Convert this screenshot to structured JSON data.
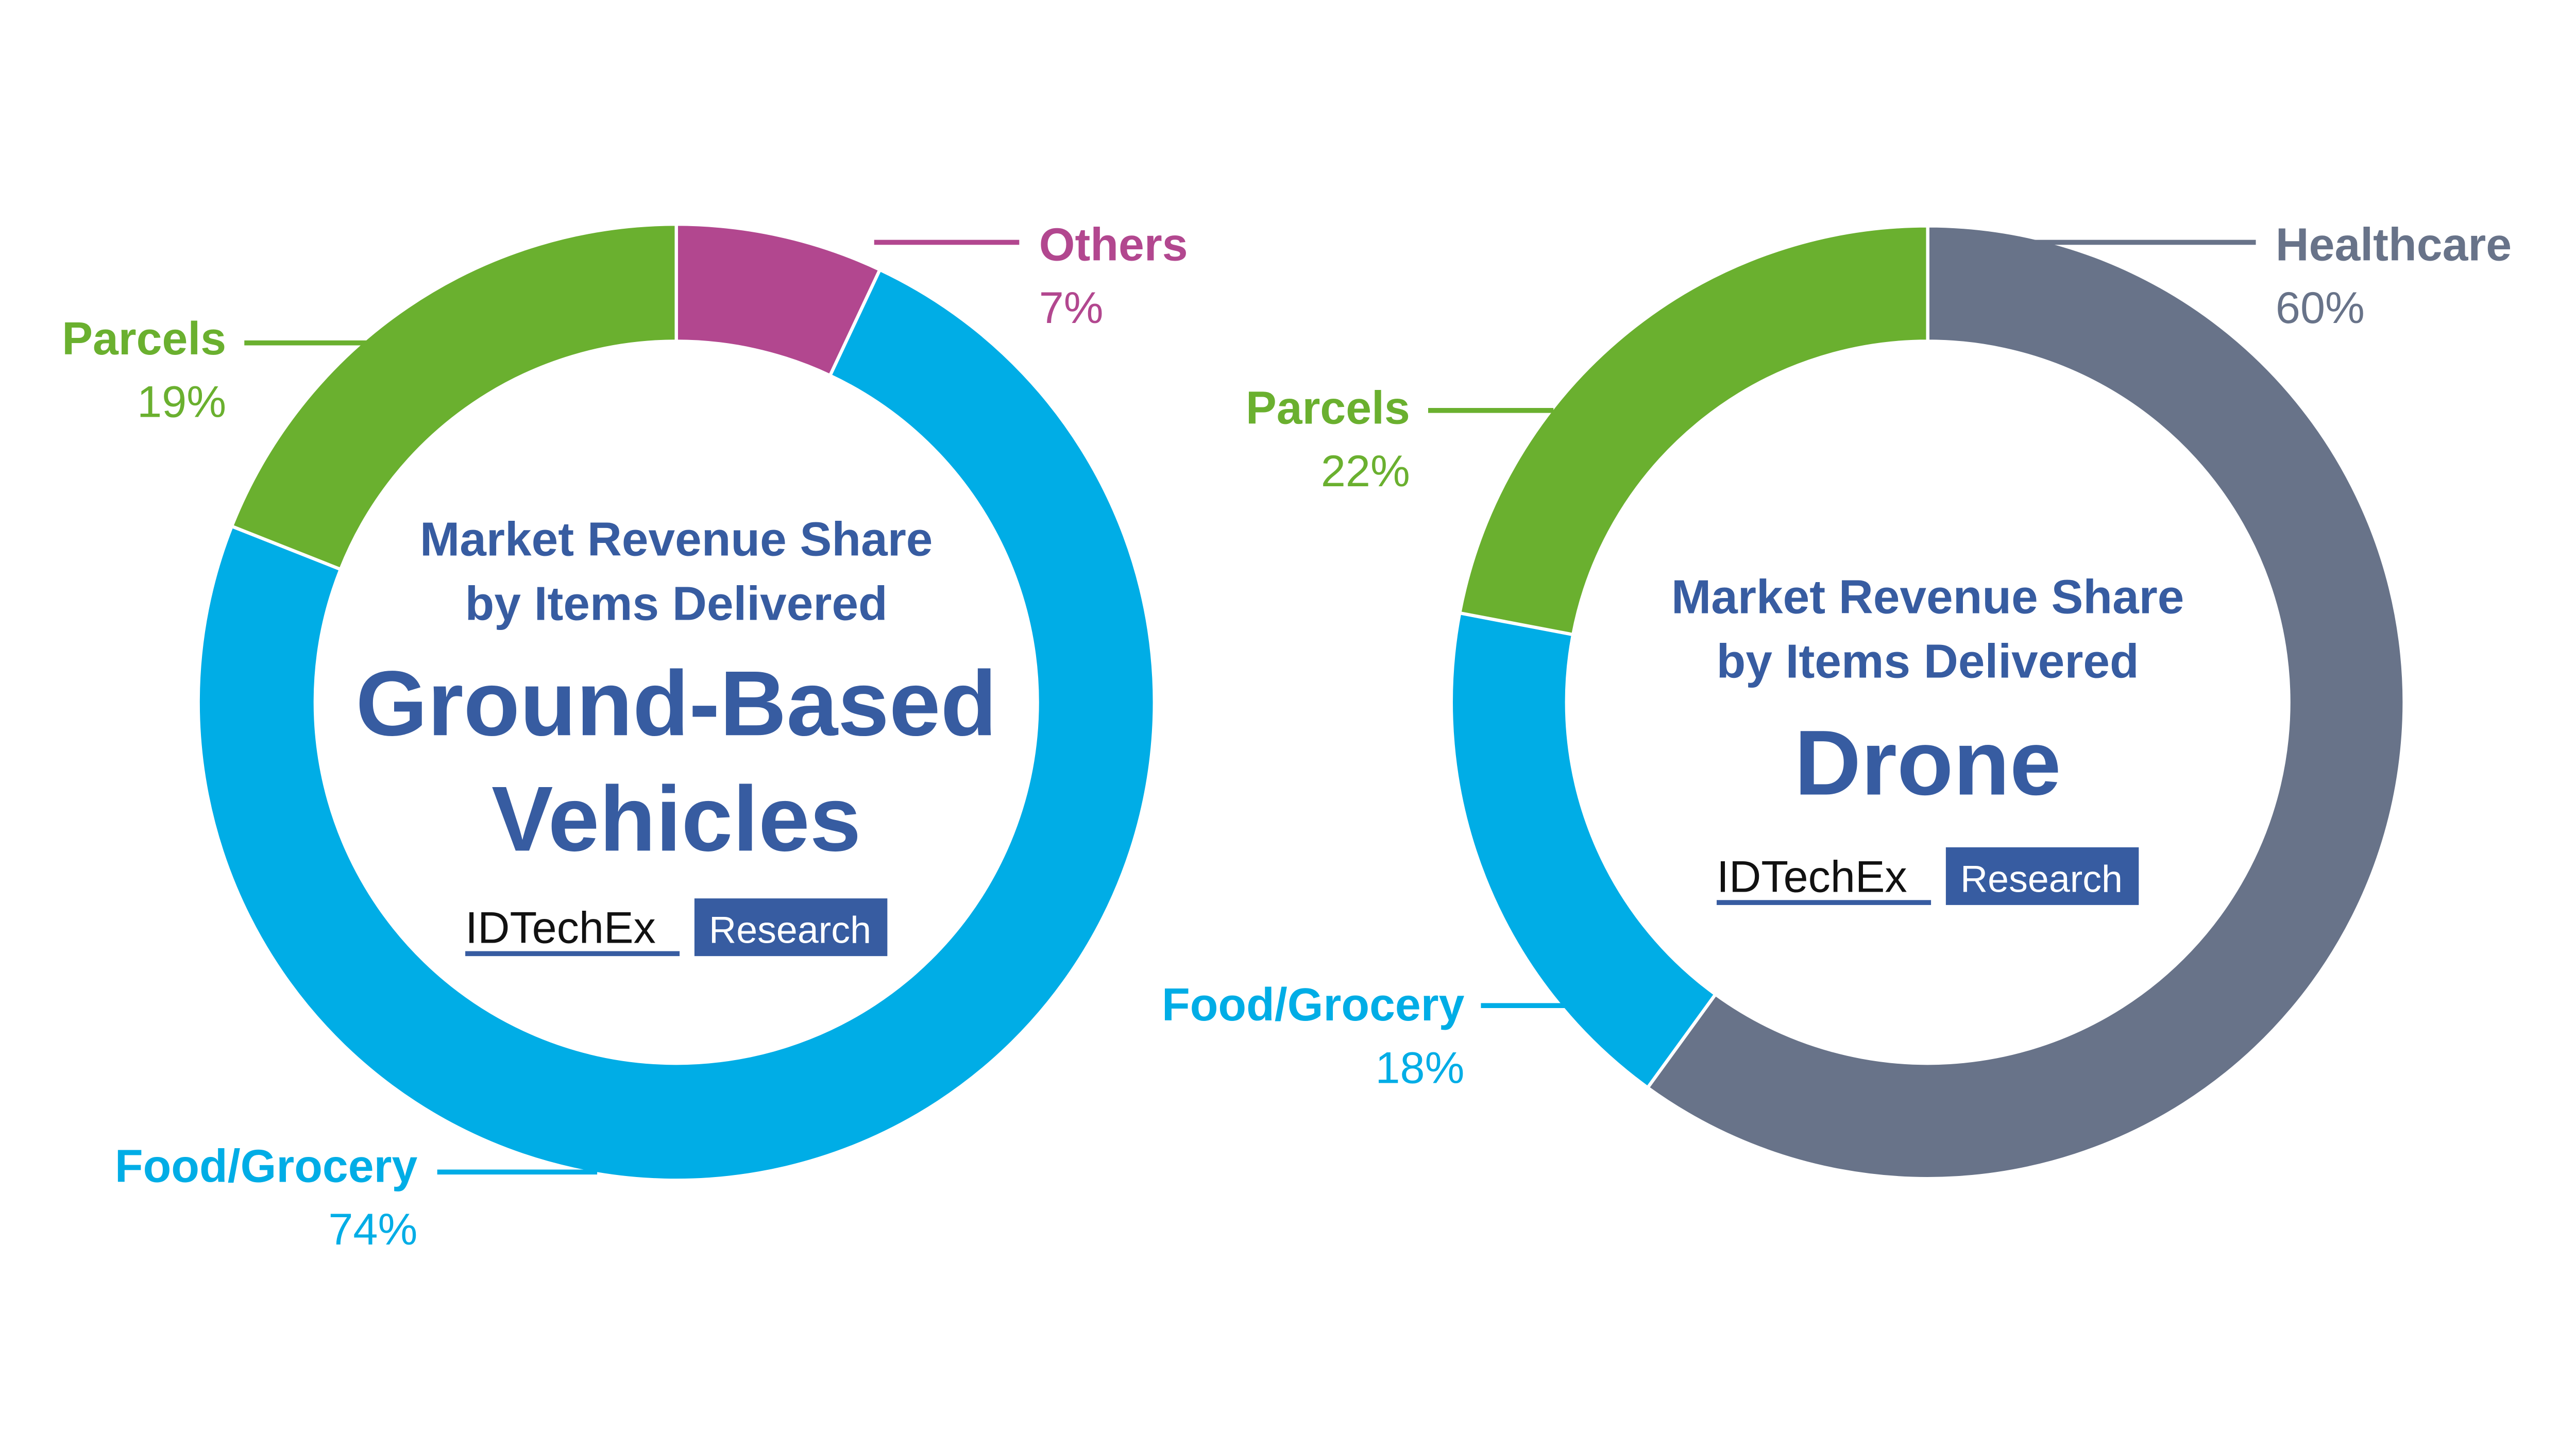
{
  "chart_data": [
    {
      "type": "pie",
      "donut": true,
      "subtitle": "Market Revenue Share by Items Delivered",
      "subtitle_lines": [
        "Market Revenue Share",
        "by Items Delivered"
      ],
      "title_lines": [
        "Ground-Based",
        "Vehicles"
      ],
      "slices": [
        {
          "label": "Others",
          "value": 7,
          "value_label": "7%",
          "color": "#B2478F"
        },
        {
          "label": "Food/Grocery",
          "value": 74,
          "value_label": "74%",
          "color": "#00ADE6"
        },
        {
          "label": "Parcels",
          "value": 19,
          "value_label": "19%",
          "color": "#6AB02F"
        }
      ]
    },
    {
      "type": "pie",
      "donut": true,
      "subtitle": "Market Revenue Share by Items Delivered",
      "subtitle_lines": [
        "Market Revenue Share",
        "by Items Delivered"
      ],
      "title_lines": [
        "Drone"
      ],
      "slices": [
        {
          "label": "Healthcare",
          "value": 60,
          "value_label": "60%",
          "color": "#687389"
        },
        {
          "label": "Food/Grocery",
          "value": 18,
          "value_label": "18%",
          "color": "#00ADE6"
        },
        {
          "label": "Parcels",
          "value": 22,
          "value_label": "22%",
          "color": "#6AB02F"
        }
      ]
    }
  ],
  "logo": {
    "name": "IDTechEx",
    "tag": "Research",
    "color": "#375CA1"
  },
  "colors": {
    "title": "#375CA1"
  }
}
